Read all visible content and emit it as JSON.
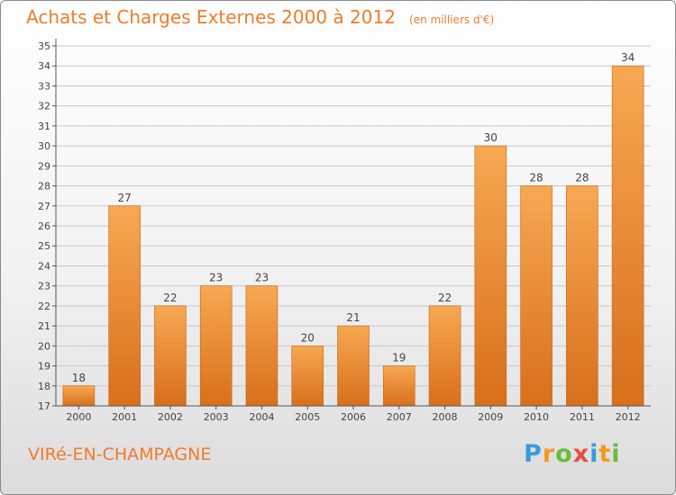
{
  "header": {
    "title": "Achats et Charges Externes 2000 à 2012",
    "unit": "(en milliers d'€)"
  },
  "footer": {
    "city": "VIRé-EN-CHAMPAGNE",
    "logo": "Proxiti"
  },
  "colors": {
    "accent": "#f07b2c",
    "bar_top": "#f7a852",
    "bar_bottom": "#d86f1b",
    "grid": "#c8c8c8",
    "logo": [
      "#3a9bd9",
      "#f39a1e",
      "#6cbb3c",
      "#e84c3d",
      "#3a9bd9",
      "#f39a1e",
      "#6cbb3c"
    ]
  },
  "chart_data": {
    "type": "bar",
    "title": "Achats et Charges Externes 2000 à 2012",
    "subtitle": "(en milliers d'€)",
    "categories": [
      "2000",
      "2001",
      "2002",
      "2003",
      "2004",
      "2005",
      "2006",
      "2007",
      "2008",
      "2009",
      "2010",
      "2011",
      "2012"
    ],
    "values": [
      18,
      27,
      22,
      23,
      23,
      20,
      21,
      19,
      22,
      30,
      28,
      28,
      34
    ],
    "ylim": [
      17,
      35
    ],
    "yticks": [
      17,
      18,
      19,
      20,
      21,
      22,
      23,
      24,
      25,
      26,
      27,
      28,
      29,
      30,
      31,
      32,
      33,
      34,
      35
    ],
    "grid": true,
    "data_labels": true,
    "xlabel": "",
    "ylabel": ""
  }
}
